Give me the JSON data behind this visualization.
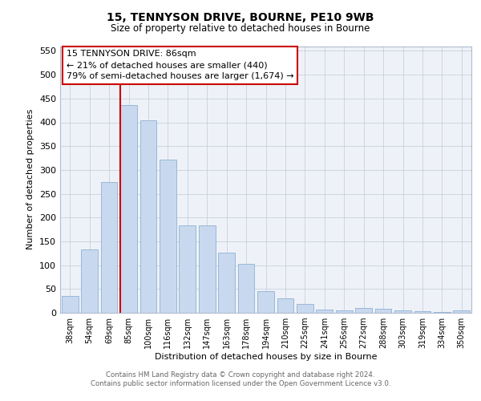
{
  "title1": "15, TENNYSON DRIVE, BOURNE, PE10 9WB",
  "title2": "Size of property relative to detached houses in Bourne",
  "xlabel": "Distribution of detached houses by size in Bourne",
  "ylabel": "Number of detached properties",
  "categories": [
    "38sqm",
    "54sqm",
    "69sqm",
    "85sqm",
    "100sqm",
    "116sqm",
    "132sqm",
    "147sqm",
    "163sqm",
    "178sqm",
    "194sqm",
    "210sqm",
    "225sqm",
    "241sqm",
    "256sqm",
    "272sqm",
    "288sqm",
    "303sqm",
    "319sqm",
    "334sqm",
    "350sqm"
  ],
  "values": [
    35,
    133,
    275,
    437,
    405,
    322,
    184,
    184,
    126,
    103,
    45,
    30,
    18,
    7,
    5,
    10,
    8,
    5,
    3,
    2,
    5
  ],
  "bar_color": "#c8d8ee",
  "bar_edge_color": "#9ab8d8",
  "property_line_color": "#cc0000",
  "annotation_text": "15 TENNYSON DRIVE: 86sqm\n← 21% of detached houses are smaller (440)\n79% of semi-detached houses are larger (1,674) →",
  "annotation_box_facecolor": "#ffffff",
  "annotation_box_edgecolor": "#cc0000",
  "ylim": [
    0,
    560
  ],
  "yticks": [
    0,
    50,
    100,
    150,
    200,
    250,
    300,
    350,
    400,
    450,
    500,
    550
  ],
  "footer1": "Contains HM Land Registry data © Crown copyright and database right 2024.",
  "footer2": "Contains public sector information licensed under the Open Government Licence v3.0.",
  "plot_bg_color": "#eef2f8",
  "grid_color": "#c8d0de"
}
